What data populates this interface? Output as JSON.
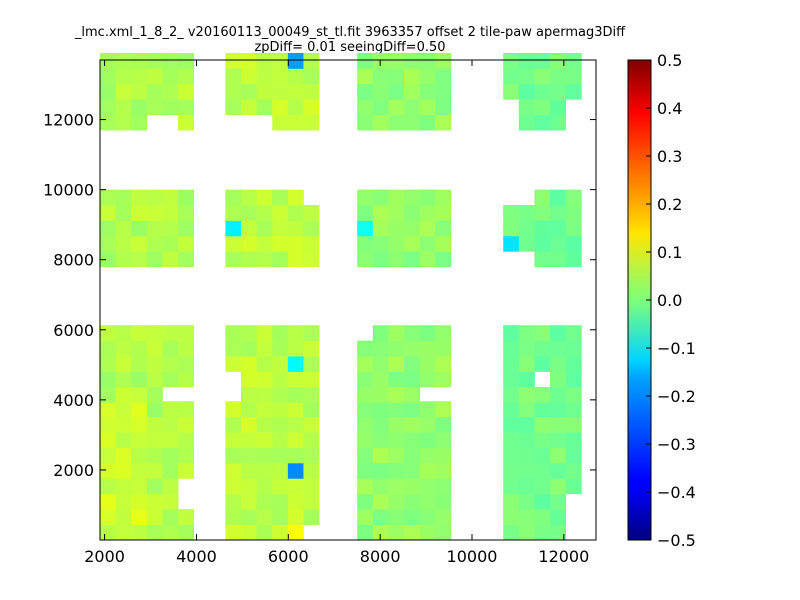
{
  "chart_data": {
    "type": "heatmap",
    "title_line1": "_lmc.xml_1_8_2_ v20160113_00049_st_tl.fit 3963357 offset 2 tile-paw apermag3Diff",
    "title_line2": "zpDiff= 0.01 seeingDiff=0.50",
    "xlim": [
      1900,
      12700
    ],
    "ylim": [
      0,
      13700
    ],
    "xticks": [
      2000,
      4000,
      6000,
      8000,
      10000,
      12000
    ],
    "yticks": [
      2000,
      4000,
      6000,
      8000,
      10000,
      12000
    ],
    "colorbar": {
      "min": -0.5,
      "max": 0.5,
      "colormap": "jet",
      "ticks": [
        -0.5,
        -0.4,
        -0.3,
        -0.2,
        -0.1,
        0.0,
        0.1,
        0.2,
        0.3,
        0.4,
        0.5
      ],
      "tick_labels": [
        "−0.5",
        "−0.4",
        "−0.3",
        "−0.2",
        "−0.1",
        "0.0",
        "0.1",
        "0.2",
        "0.3",
        "0.4",
        "0.5"
      ]
    },
    "cell_size": [
      340,
      440
    ],
    "column_groups": [
      {
        "x0": 1900,
        "ncols": 6
      },
      {
        "x0": 4630,
        "ncols": 6
      },
      {
        "x0": 7500,
        "ncols": 6
      },
      {
        "x0": 10680,
        "ncols": 5
      }
    ],
    "row_bands": [
      {
        "y0": 0,
        "nrows": 9
      },
      {
        "y0": 3930,
        "nrows": 5
      },
      {
        "y0": 7800,
        "nrows": 5
      },
      {
        "y0": 11700,
        "nrows": 5
      }
    ],
    "baseline_values": [
      0.05,
      0.06,
      0.02,
      -0.01
    ],
    "missing_cells": [
      [
        0,
        0,
        5,
        2
      ],
      [
        0,
        0,
        5,
        3
      ],
      [
        0,
        1,
        5,
        0
      ],
      [
        0,
        1,
        4,
        0
      ],
      [
        0,
        3,
        3,
        0
      ],
      [
        0,
        3,
        4,
        0
      ],
      [
        1,
        0,
        5,
        0
      ],
      [
        1,
        1,
        0,
        0
      ],
      [
        1,
        1,
        0,
        1
      ],
      [
        1,
        3,
        0,
        0
      ],
      [
        1,
        3,
        1,
        0
      ],
      [
        1,
        3,
        2,
        0
      ],
      [
        1,
        2,
        5,
        4
      ],
      [
        2,
        1,
        0,
        4
      ],
      [
        2,
        1,
        4,
        0
      ],
      [
        2,
        1,
        5,
        0
      ],
      [
        3,
        0,
        4,
        0
      ],
      [
        3,
        0,
        4,
        1
      ],
      [
        3,
        0,
        4,
        2
      ],
      [
        3,
        1,
        2,
        1
      ],
      [
        3,
        2,
        0,
        0
      ],
      [
        3,
        2,
        1,
        0
      ],
      [
        3,
        2,
        0,
        4
      ],
      [
        3,
        2,
        1,
        4
      ],
      [
        3,
        3,
        0,
        0
      ],
      [
        3,
        3,
        0,
        1
      ],
      [
        3,
        3,
        4,
        0
      ],
      [
        3,
        3,
        4,
        1
      ]
    ],
    "highlight_cells": [
      {
        "cell": [
          1,
          0,
          4,
          0
        ],
        "value": 0.12
      },
      {
        "cell": [
          1,
          0,
          4,
          4
        ],
        "value": -0.24
      },
      {
        "cell": [
          1,
          1,
          4,
          2
        ],
        "value": -0.13
      },
      {
        "cell": [
          1,
          2,
          0,
          2
        ],
        "value": -0.14
      },
      {
        "cell": [
          1,
          3,
          4,
          4
        ],
        "value": -0.22
      },
      {
        "cell": [
          2,
          2,
          0,
          2
        ],
        "value": -0.11
      },
      {
        "cell": [
          3,
          2,
          0,
          1
        ],
        "value": -0.15
      }
    ]
  }
}
